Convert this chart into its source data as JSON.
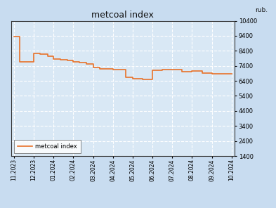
{
  "title": "metcoal index",
  "ylabel": "rub.",
  "line_label": "metcoal index",
  "line_color": "#E8722A",
  "fig_bg_color": "#C8DCF0",
  "plot_bg_color": "#D9E8F5",
  "grid_color": "#FFFFFF",
  "border_color": "#000000",
  "ylim": [
    1400,
    10400
  ],
  "yticks": [
    1400,
    2400,
    3400,
    4400,
    5400,
    6400,
    7400,
    8400,
    9400,
    10400
  ],
  "x_labels": [
    "11.2023",
    "12.2023",
    "01.2024",
    "02.2024",
    "03.2024",
    "04.2024",
    "05.2024",
    "06.2024",
    "07.2024",
    "08.2024",
    "09.2024",
    "10.2024"
  ],
  "x_values": [
    0,
    1,
    2,
    3,
    4,
    5,
    6,
    7,
    8,
    9,
    10,
    11
  ],
  "step_data": [
    [
      0.0,
      9350
    ],
    [
      0.28,
      9350
    ],
    [
      0.28,
      7650
    ],
    [
      0.55,
      7650
    ],
    [
      0.55,
      7650
    ],
    [
      1.0,
      7650
    ],
    [
      1.0,
      8250
    ],
    [
      1.3,
      8250
    ],
    [
      1.3,
      8200
    ],
    [
      1.7,
      8200
    ],
    [
      1.7,
      8050
    ],
    [
      2.0,
      8050
    ],
    [
      2.0,
      7850
    ],
    [
      2.35,
      7850
    ],
    [
      2.35,
      7800
    ],
    [
      2.7,
      7800
    ],
    [
      2.7,
      7750
    ],
    [
      3.0,
      7750
    ],
    [
      3.0,
      7650
    ],
    [
      3.3,
      7650
    ],
    [
      3.3,
      7600
    ],
    [
      3.65,
      7600
    ],
    [
      3.65,
      7550
    ],
    [
      4.0,
      7550
    ],
    [
      4.0,
      7300
    ],
    [
      4.35,
      7300
    ],
    [
      4.35,
      7200
    ],
    [
      5.0,
      7200
    ],
    [
      5.0,
      7150
    ],
    [
      5.65,
      7150
    ],
    [
      5.65,
      6650
    ],
    [
      6.0,
      6650
    ],
    [
      6.0,
      6550
    ],
    [
      6.5,
      6550
    ],
    [
      6.5,
      6500
    ],
    [
      7.0,
      6500
    ],
    [
      7.0,
      7100
    ],
    [
      7.5,
      7100
    ],
    [
      7.5,
      7150
    ],
    [
      8.0,
      7150
    ],
    [
      8.0,
      7150
    ],
    [
      8.5,
      7150
    ],
    [
      8.5,
      7000
    ],
    [
      9.0,
      7000
    ],
    [
      9.0,
      7050
    ],
    [
      9.5,
      7050
    ],
    [
      9.5,
      6900
    ],
    [
      10.0,
      6900
    ],
    [
      10.0,
      6850
    ],
    [
      11.0,
      6850
    ]
  ]
}
